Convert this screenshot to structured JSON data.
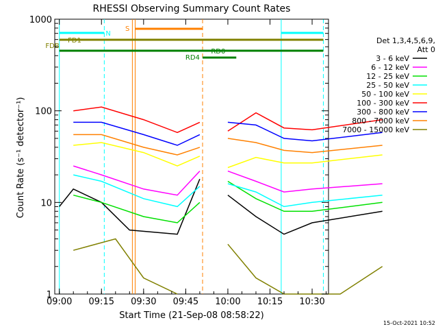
{
  "chart_data": {
    "type": "line",
    "title": "RHESSI Observing Summary Count Rates",
    "xlabel": "Start Time (21-Sep-08 08:58:22)",
    "ylabel": "Count Rate (s⁻¹ detector⁻¹)",
    "y_scale": "log",
    "ylim": [
      1,
      1000
    ],
    "xlim": [
      "08:58:22",
      "10:35:50"
    ],
    "x_ticks": [
      "09:00",
      "09:15",
      "09:30",
      "09:45",
      "10:00",
      "10:15",
      "10:30"
    ],
    "y_ticks": [
      "1",
      "10",
      "100",
      "1000"
    ],
    "legend_header": [
      "Det 1,3,4,5,6,9,",
      "Att 0"
    ],
    "legend_position": "right",
    "footer": "15-Oct-2021 10:52",
    "series": [
      {
        "name": "3 - 6 keV",
        "color": "#000000",
        "values": [
          [
            9.0,
            9
          ],
          [
            9.05,
            14
          ],
          [
            9.15,
            10
          ],
          [
            9.25,
            5
          ],
          [
            9.42,
            4.5
          ],
          [
            9.5,
            18
          ],
          [
            10.0,
            12
          ],
          [
            10.1,
            7
          ],
          [
            10.2,
            4.5
          ],
          [
            10.3,
            6
          ],
          [
            10.55,
            8
          ]
        ]
      },
      {
        "name": "6 - 12 keV",
        "color": "#ff00ff",
        "values": [
          [
            9.05,
            25
          ],
          [
            9.15,
            20
          ],
          [
            9.3,
            14
          ],
          [
            9.42,
            12
          ],
          [
            9.5,
            22
          ],
          [
            10.0,
            22
          ],
          [
            10.1,
            17
          ],
          [
            10.2,
            13
          ],
          [
            10.3,
            14
          ],
          [
            10.55,
            16
          ]
        ]
      },
      {
        "name": "12 - 25 keV",
        "color": "#00e000",
        "values": [
          [
            9.05,
            12
          ],
          [
            9.15,
            10
          ],
          [
            9.3,
            7
          ],
          [
            9.42,
            6
          ],
          [
            9.5,
            10
          ],
          [
            10.0,
            17
          ],
          [
            10.1,
            11
          ],
          [
            10.2,
            8
          ],
          [
            10.3,
            8
          ],
          [
            10.55,
            10
          ]
        ]
      },
      {
        "name": "25 - 50 keV",
        "color": "#00ffff",
        "values": [
          [
            9.05,
            20
          ],
          [
            9.15,
            17
          ],
          [
            9.3,
            11
          ],
          [
            9.42,
            9
          ],
          [
            9.5,
            15
          ],
          [
            10.0,
            16
          ],
          [
            10.1,
            13
          ],
          [
            10.2,
            9
          ],
          [
            10.3,
            10
          ],
          [
            10.55,
            12
          ]
        ]
      },
      {
        "name": "50 - 100 keV",
        "color": "#ffff00",
        "values": [
          [
            9.05,
            42
          ],
          [
            9.15,
            45
          ],
          [
            9.3,
            35
          ],
          [
            9.42,
            25
          ],
          [
            9.5,
            32
          ],
          [
            10.0,
            24
          ],
          [
            10.1,
            31
          ],
          [
            10.2,
            27
          ],
          [
            10.3,
            27
          ],
          [
            10.55,
            33
          ]
        ]
      },
      {
        "name": "100 - 300 keV",
        "color": "#ff0000",
        "values": [
          [
            9.05,
            100
          ],
          [
            9.15,
            110
          ],
          [
            9.3,
            80
          ],
          [
            9.42,
            58
          ],
          [
            9.5,
            75
          ],
          [
            10.0,
            60
          ],
          [
            10.1,
            95
          ],
          [
            10.2,
            65
          ],
          [
            10.3,
            62
          ],
          [
            10.55,
            80
          ]
        ]
      },
      {
        "name": "300 - 800 keV",
        "color": "#0000ff",
        "values": [
          [
            9.05,
            75
          ],
          [
            9.15,
            75
          ],
          [
            9.3,
            55
          ],
          [
            9.42,
            42
          ],
          [
            9.5,
            55
          ],
          [
            10.0,
            75
          ],
          [
            10.1,
            70
          ],
          [
            10.2,
            50
          ],
          [
            10.3,
            47
          ],
          [
            10.55,
            58
          ]
        ]
      },
      {
        "name": "800 - 7000 keV",
        "color": "#ff8000",
        "values": [
          [
            9.05,
            55
          ],
          [
            9.15,
            55
          ],
          [
            9.3,
            40
          ],
          [
            9.42,
            33
          ],
          [
            9.5,
            40
          ],
          [
            10.0,
            50
          ],
          [
            10.1,
            45
          ],
          [
            10.2,
            37
          ],
          [
            10.3,
            35
          ],
          [
            10.55,
            42
          ]
        ]
      },
      {
        "name": "7000 - 15000 keV",
        "color": "#808000",
        "values": [
          [
            9.05,
            3
          ],
          [
            9.2,
            4
          ],
          [
            9.3,
            1.5
          ],
          [
            9.42,
            1
          ],
          [
            10.0,
            3.5
          ],
          [
            10.1,
            1.5
          ],
          [
            10.2,
            1
          ],
          [
            10.4,
            1
          ],
          [
            10.55,
            2
          ]
        ]
      }
    ],
    "annotations": [
      {
        "label": "N",
        "color": "#00ffff"
      },
      {
        "label": "S",
        "color": "#ff8000"
      },
      {
        "label": "FD1",
        "color": "#808000"
      },
      {
        "label": "FDB",
        "color": "#808000"
      },
      {
        "label": "RD0",
        "color": "#008000"
      },
      {
        "label": "RD4",
        "color": "#008000"
      }
    ]
  }
}
